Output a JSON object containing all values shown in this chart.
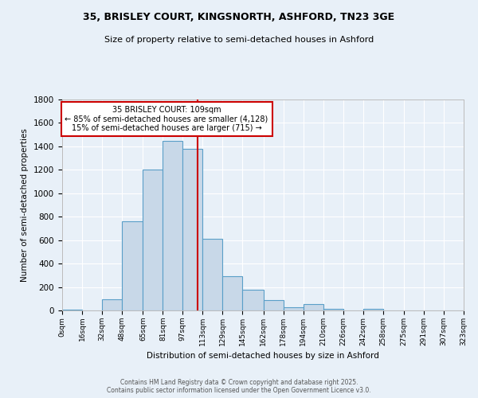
{
  "title": "35, BRISLEY COURT, KINGSNORTH, ASHFORD, TN23 3GE",
  "subtitle": "Size of property relative to semi-detached houses in Ashford",
  "xlabel": "Distribution of semi-detached houses by size in Ashford",
  "ylabel": "Number of semi-detached properties",
  "bin_labels": [
    "0sqm",
    "16sqm",
    "32sqm",
    "48sqm",
    "65sqm",
    "81sqm",
    "97sqm",
    "113sqm",
    "129sqm",
    "145sqm",
    "162sqm",
    "178sqm",
    "194sqm",
    "210sqm",
    "226sqm",
    "242sqm",
    "258sqm",
    "275sqm",
    "291sqm",
    "307sqm",
    "323sqm"
  ],
  "bin_edges": [
    0,
    16,
    32,
    48,
    65,
    81,
    97,
    113,
    129,
    145,
    162,
    178,
    194,
    210,
    226,
    242,
    258,
    275,
    291,
    307,
    323
  ],
  "bar_heights": [
    5,
    0,
    95,
    760,
    1200,
    1450,
    1380,
    610,
    290,
    175,
    90,
    30,
    55,
    15,
    0,
    15,
    0,
    0,
    0,
    0
  ],
  "bar_color": "#c8d8e8",
  "bar_edge_color": "#5a9fc8",
  "background_color": "#e8f0f8",
  "grid_color": "#ffffff",
  "vline_x": 109,
  "annotation_title": "35 BRISLEY COURT: 109sqm",
  "annotation_line1": "← 85% of semi-detached houses are smaller (4,128)",
  "annotation_line2": "15% of semi-detached houses are larger (715) →",
  "annotation_box_color": "#ffffff",
  "annotation_box_edge_color": "#cc0000",
  "vline_color": "#cc0000",
  "ylim": [
    0,
    1800
  ],
  "yticks": [
    0,
    200,
    400,
    600,
    800,
    1000,
    1200,
    1400,
    1600,
    1800
  ],
  "footer_line1": "Contains HM Land Registry data © Crown copyright and database right 2025.",
  "footer_line2": "Contains public sector information licensed under the Open Government Licence v3.0."
}
